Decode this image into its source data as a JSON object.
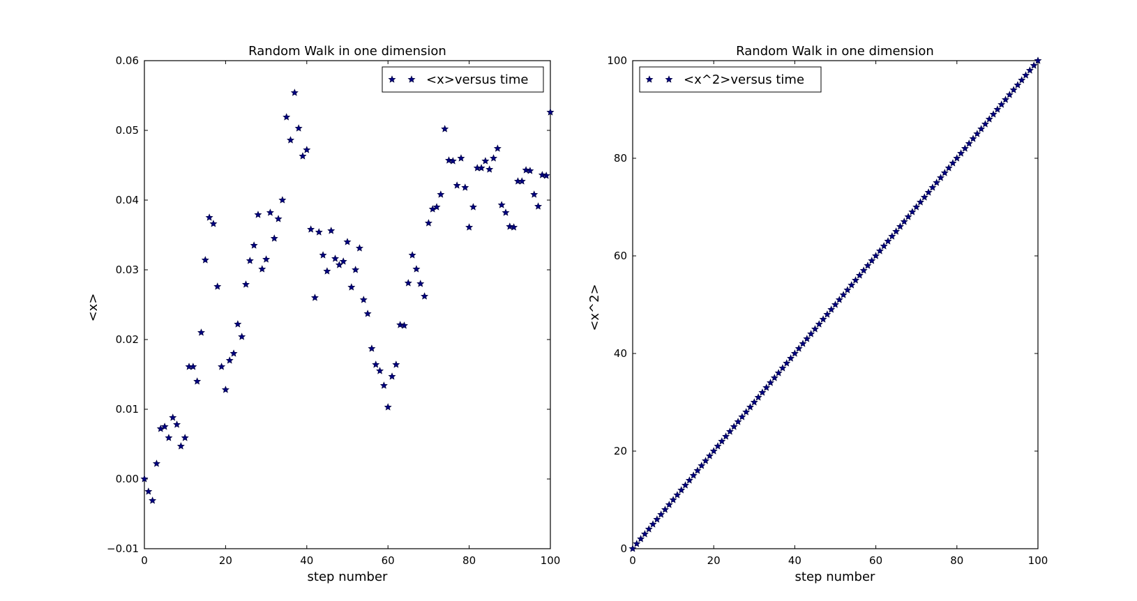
{
  "chart_data": [
    {
      "type": "scatter",
      "title": "Random Walk in one dimension",
      "xlabel": "step number",
      "ylabel": "<x>",
      "xlim": [
        0,
        100
      ],
      "ylim": [
        -0.01,
        0.06
      ],
      "xticks": [
        "0",
        "20",
        "40",
        "60",
        "80",
        "100"
      ],
      "yticks": [
        "−0.01",
        "0.00",
        "0.01",
        "0.02",
        "0.03",
        "0.04",
        "0.05",
        "0.06"
      ],
      "legend": {
        "label": "<x>versus time",
        "position": "upper right"
      },
      "marker": "star",
      "color": "#000080",
      "series": [
        {
          "name": "<x>versus time",
          "x": [
            0,
            1,
            2,
            3,
            4,
            5,
            6,
            7,
            8,
            9,
            10,
            11,
            12,
            13,
            14,
            15,
            16,
            17,
            18,
            19,
            20,
            21,
            22,
            23,
            24,
            25,
            26,
            27,
            28,
            29,
            30,
            31,
            32,
            33,
            34,
            35,
            36,
            37,
            38,
            39,
            40,
            41,
            42,
            43,
            44,
            45,
            46,
            47,
            48,
            49,
            50,
            51,
            52,
            53,
            54,
            55,
            56,
            57,
            58,
            59,
            60,
            61,
            62,
            63,
            64,
            65,
            66,
            67,
            68,
            69,
            70,
            71,
            72,
            73,
            74,
            75,
            76,
            77,
            78,
            79,
            80,
            81,
            82,
            83,
            84,
            85,
            86,
            87,
            88,
            89,
            90,
            91,
            92,
            93,
            94,
            95,
            96,
            97,
            98,
            99,
            100
          ],
          "y": [
            0.0,
            -0.0018,
            -0.0031,
            0.0022,
            0.0072,
            0.0075,
            0.0059,
            0.0088,
            0.0078,
            0.0047,
            0.0059,
            0.0161,
            0.0161,
            0.014,
            0.021,
            0.0314,
            0.0375,
            0.0366,
            0.0276,
            0.0161,
            0.0128,
            0.017,
            0.018,
            0.0222,
            0.0204,
            0.0279,
            0.0313,
            0.0335,
            0.0379,
            0.0301,
            0.0315,
            0.0382,
            0.0345,
            0.0373,
            0.04,
            0.0519,
            0.0486,
            0.0554,
            0.0503,
            0.0463,
            0.0472,
            0.0358,
            0.026,
            0.0354,
            0.0321,
            0.0298,
            0.0356,
            0.0316,
            0.0307,
            0.0312,
            0.034,
            0.0275,
            0.03,
            0.0331,
            0.0257,
            0.0237,
            0.0187,
            0.0164,
            0.0155,
            0.0134,
            0.0103,
            0.0147,
            0.0164,
            0.0221,
            0.022,
            0.0281,
            0.0321,
            0.0301,
            0.028,
            0.0262,
            0.0367,
            0.0387,
            0.039,
            0.0408,
            0.0502,
            0.0457,
            0.0456,
            0.0421,
            0.046,
            0.0418,
            0.0361,
            0.039,
            0.0446,
            0.0446,
            0.0456,
            0.0444,
            0.046,
            0.0474,
            0.0393,
            0.0382,
            0.0362,
            0.0361,
            0.0427,
            0.0427,
            0.0443,
            0.0442,
            0.0408,
            0.0391,
            0.0436,
            0.0435,
            0.0526
          ]
        }
      ]
    },
    {
      "type": "scatter",
      "title": "Random Walk in one dimension",
      "xlabel": "step number",
      "ylabel": "<x^2>",
      "xlim": [
        0,
        100
      ],
      "ylim": [
        0,
        100
      ],
      "xticks": [
        "0",
        "20",
        "40",
        "60",
        "80",
        "100"
      ],
      "yticks": [
        "0",
        "20",
        "40",
        "60",
        "80",
        "100"
      ],
      "legend": {
        "label": "<x^2>versus time",
        "position": "upper left"
      },
      "marker": "star",
      "color": "#000080",
      "series": [
        {
          "name": "<x^2>versus time",
          "x": [
            0,
            1,
            2,
            3,
            4,
            5,
            6,
            7,
            8,
            9,
            10,
            11,
            12,
            13,
            14,
            15,
            16,
            17,
            18,
            19,
            20,
            21,
            22,
            23,
            24,
            25,
            26,
            27,
            28,
            29,
            30,
            31,
            32,
            33,
            34,
            35,
            36,
            37,
            38,
            39,
            40,
            41,
            42,
            43,
            44,
            45,
            46,
            47,
            48,
            49,
            50,
            51,
            52,
            53,
            54,
            55,
            56,
            57,
            58,
            59,
            60,
            61,
            62,
            63,
            64,
            65,
            66,
            67,
            68,
            69,
            70,
            71,
            72,
            73,
            74,
            75,
            76,
            77,
            78,
            79,
            80,
            81,
            82,
            83,
            84,
            85,
            86,
            87,
            88,
            89,
            90,
            91,
            92,
            93,
            94,
            95,
            96,
            97,
            98,
            99,
            100
          ],
          "y": [
            0,
            1,
            2,
            3,
            4,
            5,
            6,
            7,
            8,
            9,
            10,
            11,
            12,
            13,
            14,
            15,
            16,
            17,
            18,
            19,
            20,
            21,
            22,
            23,
            24,
            25,
            26,
            27,
            28,
            29,
            30,
            31,
            32,
            33,
            34,
            35,
            36,
            37,
            38,
            39,
            40,
            41,
            42,
            43,
            44,
            45,
            46,
            47,
            48,
            49,
            50,
            51,
            52,
            53,
            54,
            55,
            56,
            57,
            58,
            59,
            60,
            61,
            62,
            63,
            64,
            65,
            66,
            67,
            68,
            69,
            70,
            71,
            72,
            73,
            74,
            75,
            76,
            77,
            78,
            79,
            80,
            81,
            82,
            83,
            84,
            85,
            86,
            87,
            88,
            89,
            90,
            91,
            92,
            93,
            94,
            95,
            96,
            97,
            98,
            99,
            100
          ]
        }
      ]
    }
  ]
}
